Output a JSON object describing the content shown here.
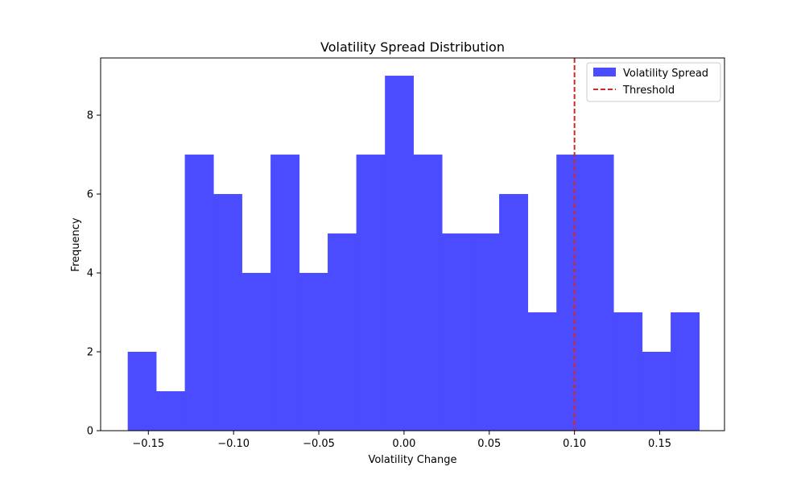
{
  "chart_data": {
    "type": "bar",
    "title": "Volatility Spread Distribution",
    "xlabel": "Volatility Change",
    "ylabel": "Frequency",
    "xlim": [
      -0.178,
      0.188
    ],
    "ylim": [
      0,
      9.45
    ],
    "x_ticks": [
      -0.15,
      -0.1,
      -0.05,
      0.0,
      0.05,
      0.1,
      0.15
    ],
    "x_tick_labels": [
      "−0.15",
      "−0.10",
      "−0.05",
      "0.00",
      "0.05",
      "0.10",
      "0.15"
    ],
    "y_ticks": [
      0,
      2,
      4,
      6,
      8
    ],
    "y_tick_labels": [
      "0",
      "2",
      "4",
      "6",
      "8"
    ],
    "grid": false,
    "bin_edges": [
      -0.1621,
      -0.1454,
      -0.1286,
      -0.1118,
      -0.0951,
      -0.0783,
      -0.0615,
      -0.0448,
      -0.028,
      -0.0112,
      0.0055,
      0.0223,
      0.0391,
      0.0558,
      0.0726,
      0.0894,
      0.1061,
      0.1229,
      0.1397,
      0.1564,
      0.1732
    ],
    "series": [
      {
        "name": "Volatility Spread",
        "color": "#4b4bff",
        "values": [
          2,
          1,
          7,
          6,
          4,
          7,
          4,
          5,
          7,
          9,
          7,
          5,
          5,
          6,
          3,
          7,
          7,
          3,
          2,
          3
        ]
      }
    ],
    "threshold": {
      "name": "Threshold",
      "x": 0.1,
      "color": "#d62728",
      "style": "dashed"
    },
    "legend": {
      "placement": "top-right",
      "entries": [
        "Volatility Spread",
        "Threshold"
      ]
    }
  }
}
